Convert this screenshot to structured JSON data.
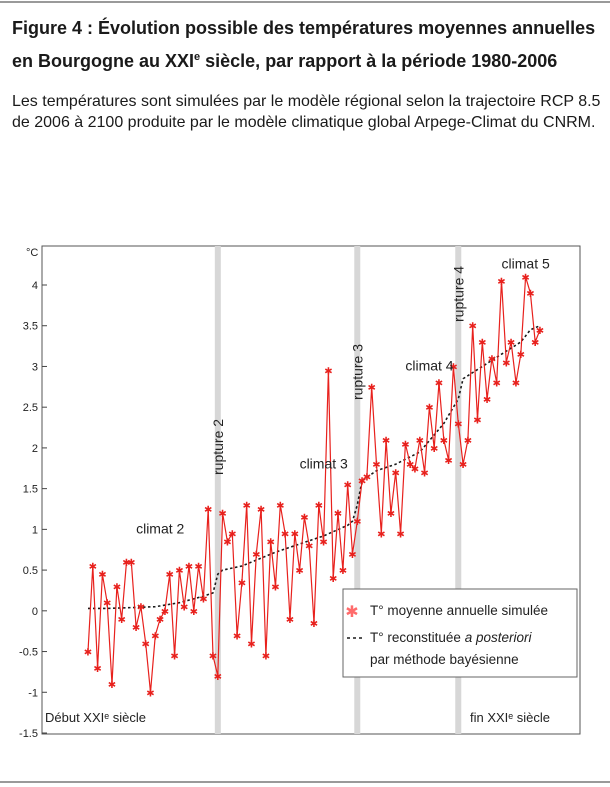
{
  "figure": {
    "title_prefix": "Figure 4 : Évolution possible des températures moyennes annuelles en Bourgogne au XXI",
    "title_sup": "e",
    "title_suffix": " siècle, par rapport à la période 1980-2006",
    "description": "Les températures sont simulées par le modèle régional selon la trajectoire RCP 8.5 de 2006 à 2100 produite par le modèle climatique global Arpege-Climat du CNRM."
  },
  "chart_data": {
    "type": "line",
    "yunit": "°C",
    "ylim": [
      -1.5,
      4.3
    ],
    "yticks": [
      -1.5,
      -1,
      -0.5,
      0,
      0.5,
      1,
      1.5,
      2,
      2.5,
      3,
      3.5,
      4
    ],
    "ytick_labels": [
      "-1.5",
      "-1",
      "-0.5",
      "0",
      "0.5",
      "1",
      "1.5",
      "2",
      "2.5",
      "3",
      "3.5",
      "4"
    ],
    "xlim": [
      2006,
      2100
    ],
    "grid": false,
    "legend_position": "bottom-right",
    "x_start_label": "Début XXIᵉ siècle",
    "x_end_label": "fin XXIᵉ siècle",
    "ruptures": [
      {
        "x": 2033,
        "label": "rupture 2"
      },
      {
        "x": 2062,
        "label": "rupture 3"
      },
      {
        "x": 2083,
        "label": "rupture 4"
      }
    ],
    "periods": [
      {
        "label": "climat 2",
        "x": 2016,
        "y": 0.95
      },
      {
        "label": "climat 3",
        "x": 2050,
        "y": 1.75
      },
      {
        "label": "climat 4",
        "x": 2072,
        "y": 2.95
      },
      {
        "label": "climat 5",
        "x": 2092,
        "y": 4.2
      }
    ],
    "series": [
      {
        "name": "T° moyenne annuelle simulée",
        "color": "#e8211d",
        "x": [
          2006,
          2007,
          2008,
          2009,
          2010,
          2011,
          2012,
          2013,
          2014,
          2015,
          2016,
          2017,
          2018,
          2019,
          2020,
          2021,
          2022,
          2023,
          2024,
          2025,
          2026,
          2027,
          2028,
          2029,
          2030,
          2031,
          2032,
          2033,
          2034,
          2035,
          2036,
          2037,
          2038,
          2039,
          2040,
          2041,
          2042,
          2043,
          2044,
          2045,
          2046,
          2047,
          2048,
          2049,
          2050,
          2051,
          2052,
          2053,
          2054,
          2055,
          2056,
          2057,
          2058,
          2059,
          2060,
          2061,
          2062,
          2063,
          2064,
          2065,
          2066,
          2067,
          2068,
          2069,
          2070,
          2071,
          2072,
          2073,
          2074,
          2075,
          2076,
          2077,
          2078,
          2079,
          2080,
          2081,
          2082,
          2083,
          2084,
          2085,
          2086,
          2087,
          2088,
          2089,
          2090,
          2091,
          2092,
          2093,
          2094,
          2095,
          2096,
          2097,
          2098,
          2099,
          2100
        ],
        "values": [
          -0.5,
          0.55,
          -0.7,
          0.45,
          0.1,
          -0.9,
          0.3,
          -0.1,
          0.6,
          0.6,
          -0.2,
          0.05,
          -0.4,
          -1.0,
          -0.3,
          -0.1,
          0.0,
          0.45,
          -0.55,
          0.5,
          0.05,
          0.55,
          0.0,
          0.55,
          0.15,
          1.25,
          -0.55,
          -0.8,
          1.2,
          0.85,
          0.95,
          -0.3,
          0.35,
          1.3,
          -0.4,
          0.7,
          1.25,
          -0.55,
          0.85,
          0.3,
          1.3,
          0.95,
          -0.1,
          0.95,
          0.5,
          1.15,
          0.8,
          -0.15,
          1.3,
          0.85,
          2.95,
          0.4,
          1.2,
          0.5,
          1.55,
          0.7,
          1.1,
          1.6,
          1.65,
          2.75,
          1.8,
          0.95,
          2.1,
          1.2,
          1.7,
          0.95,
          2.05,
          1.8,
          1.75,
          2.1,
          1.7,
          2.5,
          2.0,
          2.8,
          2.1,
          1.85,
          3.0,
          2.3,
          1.8,
          2.1,
          3.5,
          2.35,
          3.3,
          2.6,
          3.1,
          2.8,
          4.05,
          3.05,
          3.3,
          2.8,
          3.15,
          4.1,
          3.9,
          3.3,
          3.45
        ]
      },
      {
        "name": "T° reconstituée a posteriori par méthode bayésienne",
        "color": "#1a1a1a",
        "x": [
          2006,
          2010,
          2015,
          2020,
          2025,
          2030,
          2032,
          2033,
          2034,
          2038,
          2045,
          2050,
          2055,
          2060,
          2061,
          2062,
          2063,
          2066,
          2070,
          2075,
          2080,
          2081,
          2082,
          2083,
          2084,
          2088,
          2092,
          2096,
          2098,
          2100
        ],
        "values": [
          0.03,
          0.03,
          0.04,
          0.05,
          0.1,
          0.18,
          0.22,
          0.45,
          0.5,
          0.55,
          0.72,
          0.82,
          0.92,
          1.05,
          1.1,
          1.3,
          1.6,
          1.72,
          1.8,
          1.95,
          2.3,
          2.4,
          2.5,
          2.6,
          2.85,
          3.0,
          3.15,
          3.3,
          3.45,
          3.5
        ]
      }
    ],
    "legend": {
      "simulated": "T° moyenne annuelle simulée",
      "reconstructed_prefix": "T° reconstituée ",
      "reconstructed_italic": "a posteriori",
      "reconstructed_line2": "par méthode bayésienne"
    }
  }
}
